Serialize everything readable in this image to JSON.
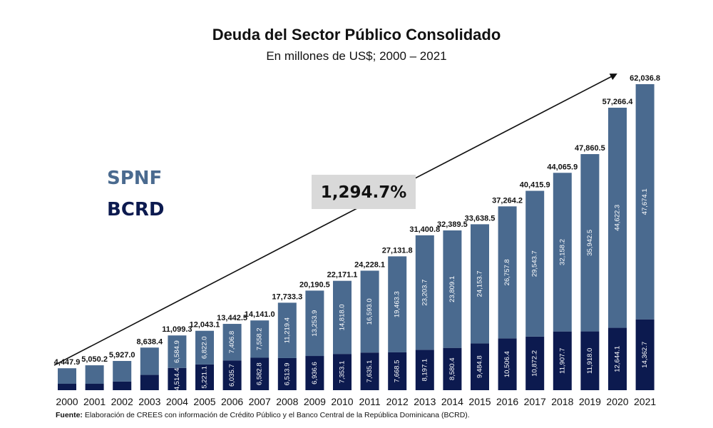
{
  "chart_data": {
    "type": "bar",
    "stacked": true,
    "title": "Deuda del Sector Público Consolidado",
    "subtitle": "En millones de US$; 2000 – 2021",
    "categories": [
      "2000",
      "2001",
      "2002",
      "2003",
      "2004",
      "2005",
      "2006",
      "2007",
      "2008",
      "2009",
      "2010",
      "2011",
      "2012",
      "2013",
      "2014",
      "2015",
      "2016",
      "2017",
      "2018",
      "2019",
      "2020",
      "2021"
    ],
    "totals": [
      4447.9,
      5050.2,
      5927.0,
      8638.4,
      11099.3,
      12043.1,
      13442.5,
      14141.0,
      17733.3,
      20190.5,
      22171.1,
      24228.1,
      27131.8,
      31400.8,
      32389.5,
      33638.5,
      37264.2,
      40415.9,
      44065.9,
      47860.5,
      57266.4,
      62036.8
    ],
    "total_labels": [
      "4,447.9",
      "5,050.2",
      "5,927.0",
      "8,638.4",
      "11,099.3",
      "12,043.1",
      "13,442.5",
      "14,141.0",
      "17,733.3",
      "20,190.5",
      "22,171.1",
      "24,228.1",
      "27,131.8",
      "31,400.8",
      "32,389.5",
      "33,638.5",
      "37,264.2",
      "40,415.9",
      "44,065.9",
      "47,860.5",
      "57,266.4",
      "62,036.8"
    ],
    "series": [
      {
        "name": "BCRD",
        "color": "#0c1a4f",
        "values": [
          1300,
          1300,
          1750,
          3100,
          4514.4,
          5221.1,
          6035.7,
          6582.8,
          6513.9,
          6936.6,
          7353.1,
          7635.1,
          7668.5,
          8197.1,
          8580.4,
          9484.8,
          10506.4,
          10872.2,
          11907.7,
          11918.0,
          12644.1,
          14362.7
        ],
        "labels": [
          null,
          null,
          null,
          null,
          "4,514.4",
          "5,221.1",
          "6,035.7",
          "6,582.8",
          "6,513.9",
          "6,936.6",
          "7,353.1",
          "7,635.1",
          "7,668.5",
          "8,197.1",
          "8,580.4",
          "9,484.8",
          "10,506.4",
          "10,872.2",
          "11,907.7",
          "11,918.0",
          "12,644.1",
          "14,362.7"
        ]
      },
      {
        "name": "SPNF",
        "color": "#4a6a8f",
        "values": [
          3147.9,
          3750.2,
          4177.0,
          5538.4,
          6584.9,
          6822.0,
          7406.8,
          7558.2,
          11219.4,
          13253.9,
          14818.0,
          16593.0,
          19463.3,
          23203.7,
          23809.1,
          24153.7,
          26757.8,
          29543.7,
          32158.2,
          35942.5,
          44622.3,
          47674.1
        ],
        "labels": [
          null,
          null,
          null,
          null,
          "6,584.9",
          "6,822.0",
          "7,406.8",
          "7,558.2",
          "11,219.4",
          "13,253.9",
          "14,818.0",
          "16,593.0",
          "19,463.3",
          "23,203.7",
          "23,809.1",
          "24,153.7",
          "26,757.8",
          "29,543.7",
          "32,158.2",
          "35,942.5",
          "44,622.3",
          "47,674.1"
        ]
      }
    ],
    "legend": {
      "items": [
        "SPNF",
        "BCRD"
      ],
      "placement": "left"
    },
    "annotation": {
      "text": "1,294.7%"
    },
    "ylim": [
      0,
      62036.8
    ],
    "grid": false
  },
  "source": {
    "label": "Fuente:",
    "text": " Elaboración de CREES con información de Crédito Público y el Banco Central de la República Dominicana (BCRD)."
  }
}
